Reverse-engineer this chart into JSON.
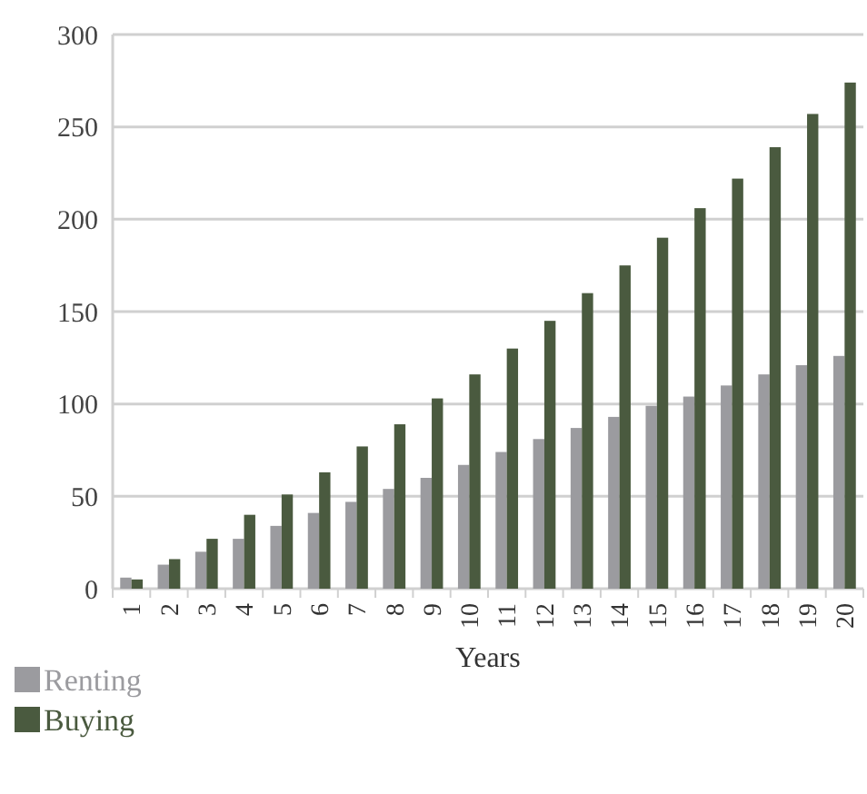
{
  "chart_data": {
    "type": "bar",
    "xlabel": "Years",
    "categories": [
      "1",
      "2",
      "3",
      "4",
      "5",
      "6",
      "7",
      "8",
      "9",
      "10",
      "11",
      "12",
      "13",
      "14",
      "15",
      "16",
      "17",
      "18",
      "19",
      "20"
    ],
    "series": [
      {
        "name": "Renting",
        "color": "#9b9b9f",
        "values": [
          6,
          13,
          20,
          27,
          34,
          41,
          47,
          54,
          60,
          67,
          74,
          81,
          87,
          93,
          99,
          104,
          110,
          116,
          121,
          126
        ]
      },
      {
        "name": "Buying",
        "color": "#4a5a3f",
        "values": [
          5,
          16,
          27,
          40,
          51,
          63,
          77,
          89,
          103,
          116,
          130,
          145,
          160,
          175,
          190,
          206,
          222,
          239,
          257,
          274
        ]
      }
    ],
    "ylim": [
      0,
      300
    ],
    "yticks": [
      0,
      50,
      100,
      150,
      200,
      250,
      300
    ],
    "grid": "y",
    "legend": "bottom left"
  }
}
